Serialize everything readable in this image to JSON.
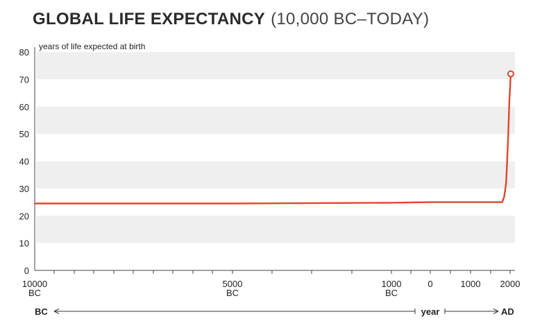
{
  "header": {
    "title": "GLOBAL LIFE EXPECTANCY",
    "subtitle": "(10,000 BC–TODAY)"
  },
  "chart_data": {
    "type": "line",
    "title": "GLOBAL LIFE EXPECTANCY (10,000 BC–TODAY)",
    "ylabel": "years of life expected at birth",
    "xlabel": "year",
    "ylim": [
      0,
      80
    ],
    "yticks": [
      0,
      10,
      20,
      30,
      40,
      50,
      60,
      70,
      80
    ],
    "xtick_labels": [
      {
        "top": "10000",
        "bottom": "BC"
      },
      {
        "top": "5000",
        "bottom": "BC"
      },
      {
        "top": "1000",
        "bottom": "BC"
      },
      {
        "top": "0",
        "bottom": ""
      },
      {
        "top": "1000",
        "bottom": ""
      },
      {
        "top": "2000",
        "bottom": ""
      }
    ],
    "era_labels": {
      "left": "BC",
      "middle": "year",
      "right": "AD"
    },
    "grid": "alternating horizontal bands",
    "series": [
      {
        "color": "#e0452e",
        "points": [
          {
            "x": -10000,
            "y": 24.5
          },
          {
            "x": -5000,
            "y": 24.5
          },
          {
            "x": -1000,
            "y": 24.8
          },
          {
            "x": 0,
            "y": 25
          },
          {
            "x": 1000,
            "y": 25
          },
          {
            "x": 1800,
            "y": 25
          },
          {
            "x": 1850,
            "y": 27
          },
          {
            "x": 1900,
            "y": 32
          },
          {
            "x": 1950,
            "y": 48
          },
          {
            "x": 1980,
            "y": 62
          },
          {
            "x": 2000,
            "y": 67
          },
          {
            "x": 2015,
            "y": 72
          }
        ],
        "end_marker": "open circle"
      }
    ]
  },
  "colors": {
    "band": "#efefef",
    "line": "#e0452e",
    "axis": "#444444"
  }
}
